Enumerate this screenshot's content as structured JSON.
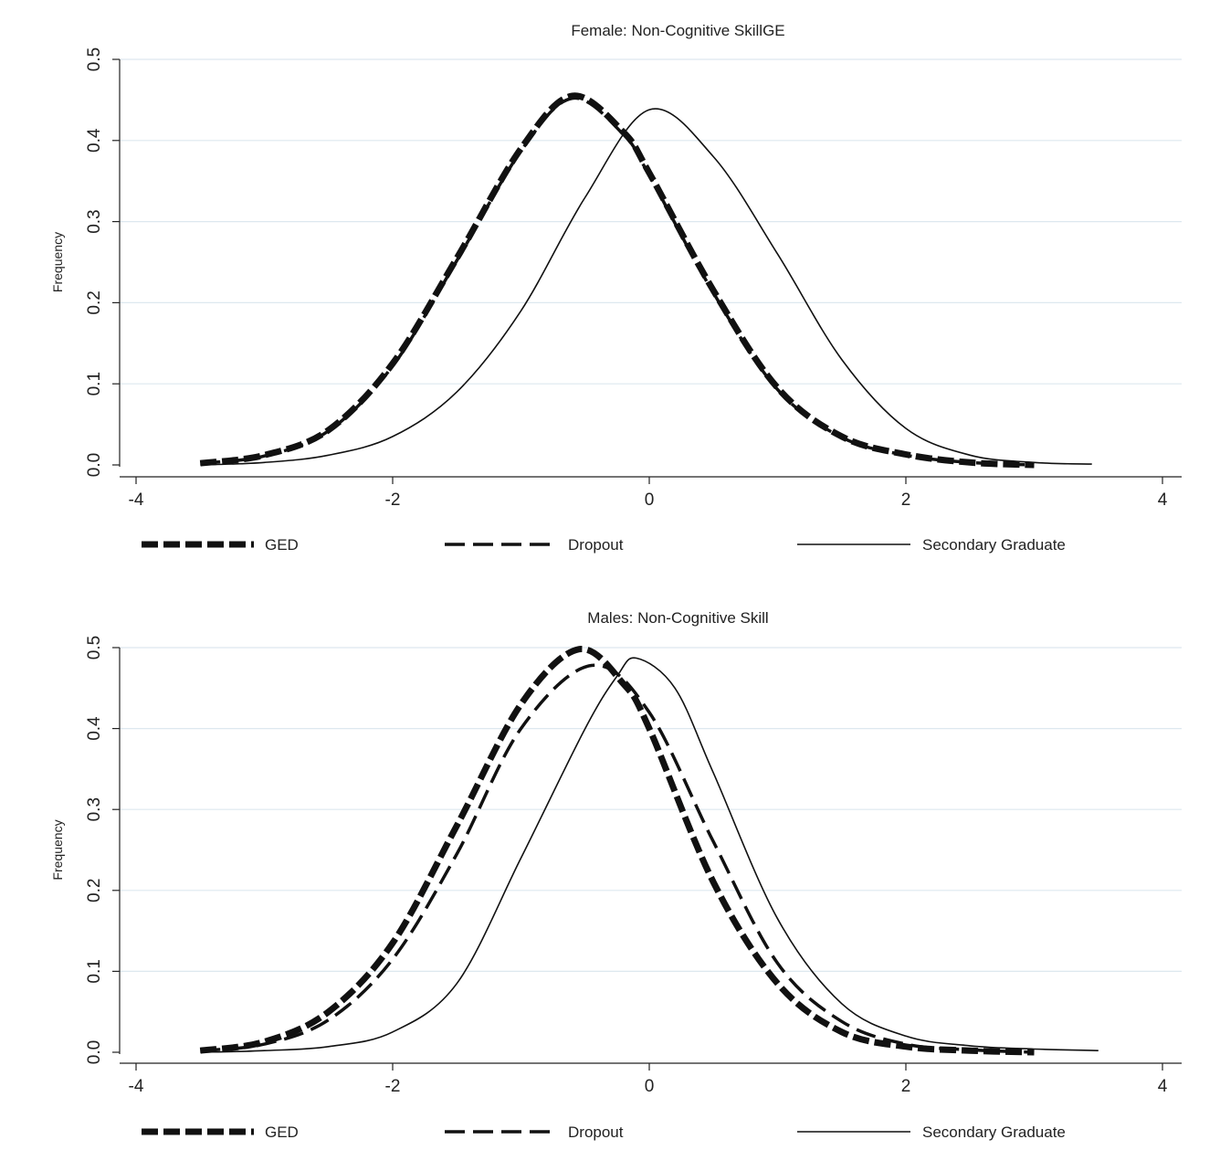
{
  "chart_data": [
    {
      "type": "line",
      "title": "Female: Non-Cognitive SkillGE",
      "xlabel": "",
      "ylabel": "Frequency",
      "xlim": [
        -4,
        4
      ],
      "ylim": [
        0,
        0.5
      ],
      "xticks": [
        "-4",
        "-2",
        "0",
        "2",
        "4"
      ],
      "yticks": [
        "0.0",
        "0.1",
        "0.2",
        "0.3",
        "0.4",
        "0.5"
      ],
      "grid": true,
      "legend_position": "bottom",
      "series": [
        {
          "name": "GED",
          "style": "thick-dash",
          "color": "#111111",
          "x": [
            -3.5,
            -3.0,
            -2.5,
            -2.0,
            -1.5,
            -1.0,
            -0.6,
            -0.2,
            0.0,
            0.5,
            1.0,
            1.5,
            2.0,
            2.5,
            3.0
          ],
          "y": [
            0.002,
            0.012,
            0.043,
            0.125,
            0.255,
            0.39,
            0.455,
            0.41,
            0.36,
            0.215,
            0.095,
            0.035,
            0.013,
            0.003,
            0.0
          ]
        },
        {
          "name": "Dropout",
          "style": "dash",
          "color": "#111111",
          "x": [
            -3.5,
            -3.0,
            -2.5,
            -2.0,
            -1.5,
            -1.0,
            -0.6,
            -0.2,
            0.0,
            0.5,
            1.0,
            1.5,
            2.0,
            2.5,
            3.0
          ],
          "y": [
            0.002,
            0.011,
            0.042,
            0.122,
            0.252,
            0.387,
            0.452,
            0.407,
            0.357,
            0.212,
            0.093,
            0.034,
            0.012,
            0.003,
            0.0
          ]
        },
        {
          "name": "Secondary Graduate",
          "style": "solid",
          "color": "#111111",
          "x": [
            -3.5,
            -3.0,
            -2.5,
            -2.0,
            -1.5,
            -1.0,
            -0.5,
            0.0,
            0.5,
            1.0,
            1.5,
            2.0,
            2.5,
            3.0,
            3.45
          ],
          "y": [
            0.0,
            0.003,
            0.012,
            0.035,
            0.09,
            0.19,
            0.33,
            0.438,
            0.38,
            0.26,
            0.13,
            0.045,
            0.012,
            0.003,
            0.001
          ]
        }
      ]
    },
    {
      "type": "line",
      "title": "Males: Non-Cognitive Skill",
      "xlabel": "",
      "ylabel": "Frequency",
      "xlim": [
        -4,
        4
      ],
      "ylim": [
        0,
        0.5
      ],
      "xticks": [
        "-4",
        "-2",
        "0",
        "2",
        "4"
      ],
      "yticks": [
        "0.0",
        "0.1",
        "0.2",
        "0.3",
        "0.4",
        "0.5"
      ],
      "grid": true,
      "legend_position": "bottom",
      "series": [
        {
          "name": "GED",
          "style": "thick-dash",
          "color": "#111111",
          "x": [
            -3.5,
            -3.0,
            -2.5,
            -2.0,
            -1.5,
            -1.0,
            -0.55,
            -0.2,
            0.0,
            0.5,
            1.0,
            1.5,
            2.0,
            2.5,
            3.0
          ],
          "y": [
            0.002,
            0.013,
            0.05,
            0.135,
            0.28,
            0.43,
            0.498,
            0.455,
            0.4,
            0.21,
            0.085,
            0.025,
            0.007,
            0.002,
            0.0
          ]
        },
        {
          "name": "Dropout",
          "style": "dash",
          "color": "#111111",
          "x": [
            -3.5,
            -3.0,
            -2.5,
            -2.0,
            -1.5,
            -1.0,
            -0.45,
            0.0,
            0.5,
            1.0,
            1.5,
            2.0,
            2.5,
            3.0
          ],
          "y": [
            0.002,
            0.01,
            0.04,
            0.115,
            0.245,
            0.4,
            0.478,
            0.42,
            0.26,
            0.11,
            0.038,
            0.01,
            0.003,
            0.0
          ]
        },
        {
          "name": "Secondary Graduate",
          "style": "solid",
          "color": "#111111",
          "x": [
            -3.5,
            -3.0,
            -2.5,
            -2.0,
            -1.5,
            -1.0,
            -0.5,
            -0.25,
            -0.1,
            0.2,
            0.5,
            1.0,
            1.5,
            2.0,
            2.5,
            3.0,
            3.5
          ],
          "y": [
            0.0,
            0.002,
            0.007,
            0.025,
            0.085,
            0.24,
            0.4,
            0.465,
            0.487,
            0.45,
            0.345,
            0.165,
            0.06,
            0.02,
            0.008,
            0.004,
            0.002
          ]
        }
      ]
    }
  ]
}
